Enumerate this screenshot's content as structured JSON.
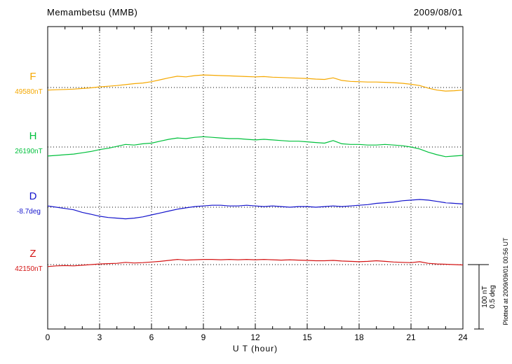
{
  "chart_data": {
    "type": "line",
    "title": "Memambetsu (MMB)",
    "date": "2009/08/01",
    "xlabel": "U T (hour)",
    "x_start": 0,
    "x_end": 24,
    "x_step_hours": 0.5,
    "x_ticks": [
      0,
      3,
      6,
      9,
      12,
      15,
      18,
      21,
      24
    ],
    "grid": "dotted-vertical-at-3h-and-dotted-baselines",
    "scale": {
      "nT_per_division": 100,
      "deg_per_division": 0.5
    },
    "annotations": {
      "scale_nT": "100 nT",
      "scale_deg": "0.5 deg",
      "plotted_at": "Plotted at 2009/09/01 00:56 UT"
    },
    "series": [
      {
        "name": "F",
        "unit": "nT",
        "baseline_value": 49580,
        "baseline_label": "49580nT",
        "color": "#f5a800",
        "offsets": [
          -4,
          -3.5,
          -3,
          -2.5,
          -1.5,
          -0.5,
          1,
          2,
          3,
          4.5,
          6,
          7,
          9,
          12,
          15,
          17.5,
          16.5,
          18.5,
          19.5,
          19,
          18.5,
          18,
          17.5,
          17,
          16.5,
          17,
          16,
          15.5,
          15,
          14.5,
          14,
          13,
          12.5,
          15,
          11,
          9.5,
          9,
          8.5,
          8.5,
          8,
          7.5,
          6.5,
          5,
          3,
          -1,
          -4,
          -5.5,
          -5,
          -4
        ]
      },
      {
        "name": "H",
        "unit": "nT",
        "baseline_value": 26190,
        "baseline_label": "26190nT",
        "color": "#00c03c",
        "offsets": [
          -14,
          -13,
          -12,
          -11,
          -9,
          -7,
          -4,
          -2,
          1,
          4,
          3,
          5,
          6,
          9,
          12,
          14,
          13,
          15,
          16,
          15,
          14,
          13,
          13,
          12,
          11,
          12,
          11,
          10,
          9,
          9,
          8,
          7,
          6,
          10,
          5,
          4,
          4,
          3,
          3,
          4,
          3,
          2,
          0,
          -3,
          -8,
          -12,
          -15,
          -14,
          -13
        ]
      },
      {
        "name": "D",
        "unit": "deg",
        "baseline_value": -8.7,
        "baseline_label": "-8.7deg",
        "color": "#1414cc",
        "offsets": [
          0.01,
          0,
          -0.01,
          -0.02,
          -0.04,
          -0.055,
          -0.07,
          -0.08,
          -0.085,
          -0.09,
          -0.085,
          -0.075,
          -0.06,
          -0.045,
          -0.03,
          -0.015,
          -0.005,
          0.005,
          0.01,
          0.015,
          0.015,
          0.01,
          0.01,
          0.015,
          0.01,
          0.005,
          0.01,
          0.005,
          0,
          0.005,
          0.005,
          0,
          0.005,
          0.01,
          0.005,
          0.01,
          0.015,
          0.02,
          0.03,
          0.035,
          0.04,
          0.05,
          0.055,
          0.06,
          0.055,
          0.045,
          0.035,
          0.03,
          0.025
        ]
      },
      {
        "name": "Z",
        "unit": "nT",
        "baseline_value": 42150,
        "baseline_label": "42150nT",
        "color": "#d41414",
        "offsets": [
          -3,
          -2,
          -1.5,
          -2,
          -1,
          0,
          1,
          1.5,
          2,
          3.5,
          2.5,
          3,
          4,
          5,
          6.5,
          8,
          7,
          7.5,
          8,
          8,
          7.5,
          8,
          7.5,
          8,
          7.5,
          8,
          7.5,
          7,
          7.5,
          7,
          6.5,
          6,
          6,
          6.5,
          5.5,
          5,
          4.5,
          5,
          6,
          5,
          4,
          3.5,
          3,
          4.5,
          2,
          1,
          0.5,
          0,
          -0.5
        ]
      }
    ]
  }
}
